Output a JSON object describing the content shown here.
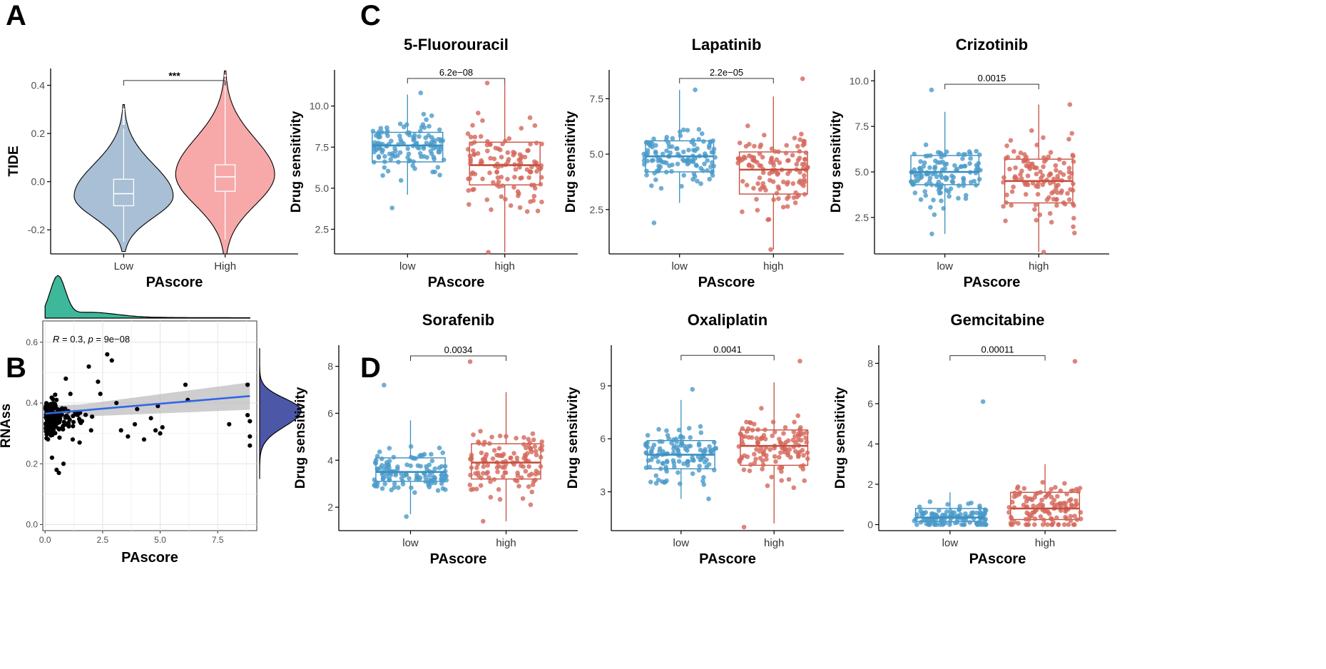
{
  "panel_labels": {
    "a": "A",
    "b": "B",
    "c": "C",
    "d": "D"
  },
  "colors": {
    "low_box": "#3B8FC0",
    "low_point": "#4A9AC9",
    "high_box": "#C5503F",
    "high_point": "#D4675A",
    "violin_low": "#A8BFD5",
    "violin_high": "#F7A9A9",
    "density_top": "#3DB89A",
    "density_right": "#4D57A8",
    "regression": "#3366E6",
    "ci_band": "#BDBDBD"
  },
  "chart_data": [
    {
      "id": "A",
      "type": "violin",
      "title": "",
      "xlabel": "PAscore",
      "ylabel": "TIDE",
      "categories": [
        "Low",
        "High"
      ],
      "ylim": [
        -0.3,
        0.47
      ],
      "yticks": [
        -0.2,
        0.0,
        0.2,
        0.4
      ],
      "ytick_labels": [
        "-0.2",
        "0.0",
        "0.2",
        "0.4"
      ],
      "significance": "***",
      "groups": [
        {
          "name": "Low",
          "min": -0.29,
          "q1": -0.1,
          "median": -0.05,
          "q3": 0.01,
          "max": 0.32,
          "whisker_low": -0.25,
          "whisker_high": 0.22,
          "mode": -0.06,
          "outliers": [
            0.24,
            0.25,
            0.26,
            0.27,
            0.28,
            0.29,
            0.3
          ]
        },
        {
          "name": "High",
          "min": -0.3,
          "q1": -0.04,
          "median": 0.02,
          "q3": 0.07,
          "max": 0.46,
          "whisker_low": -0.24,
          "whisker_high": 0.4,
          "mode": 0.03,
          "outliers": [
            0.42,
            0.44
          ]
        }
      ]
    },
    {
      "id": "B",
      "type": "scatter",
      "title": "",
      "xlabel": "PAscore",
      "ylabel": "RNAss",
      "annotation_r": "R",
      "annotation_r_value": " = 0.3, ",
      "annotation_p": "p",
      "annotation_p_value": " = 9e−08",
      "xlim": [
        -0.1,
        9.2
      ],
      "ylim": [
        -0.02,
        0.67
      ],
      "xticks": [
        0.0,
        2.5,
        5.0,
        7.5
      ],
      "xtick_labels": [
        "0.0",
        "2.5",
        "5.0",
        "7.5"
      ],
      "yticks": [
        0.0,
        0.2,
        0.4,
        0.6
      ],
      "ytick_labels": [
        "0.0",
        "0.2",
        "0.4",
        "0.6"
      ],
      "regression": {
        "intercept": 0.365,
        "slope": 0.0065,
        "ci_start": 0.02,
        "ci_end": 0.045
      },
      "points_outline": [
        [
          0.3,
          0.22
        ],
        [
          0.5,
          0.18
        ],
        [
          0.6,
          0.17
        ],
        [
          0.8,
          0.2
        ],
        [
          1.2,
          0.28
        ],
        [
          1.5,
          0.27
        ],
        [
          1.9,
          0.52
        ],
        [
          2.3,
          0.47
        ],
        [
          2.7,
          0.56
        ],
        [
          2.9,
          0.54
        ],
        [
          3.3,
          0.31
        ],
        [
          3.6,
          0.29
        ],
        [
          4.3,
          0.28
        ],
        [
          4.6,
          0.35
        ],
        [
          5.0,
          0.3
        ],
        [
          6.1,
          0.46
        ],
        [
          6.2,
          0.41
        ],
        [
          8.0,
          0.33
        ],
        [
          8.8,
          0.46
        ],
        [
          8.8,
          0.36
        ],
        [
          8.9,
          0.29
        ],
        [
          8.9,
          0.26
        ],
        [
          8.9,
          0.34
        ],
        [
          2.0,
          0.31
        ],
        [
          2.4,
          0.43
        ],
        [
          1.1,
          0.43
        ],
        [
          1.3,
          0.37
        ],
        [
          0.9,
          0.48
        ],
        [
          3.1,
          0.4
        ],
        [
          4.0,
          0.38
        ],
        [
          4.9,
          0.39
        ],
        [
          4.8,
          0.31
        ],
        [
          3.9,
          0.33
        ],
        [
          5.1,
          0.32
        ]
      ]
    },
    {
      "id": "C1",
      "type": "boxplot",
      "title": "5-Fluorouracil",
      "xlabel": "PAscore",
      "ylabel": "Drug sensitivity",
      "categories": [
        "low",
        "high"
      ],
      "ylim": [
        1.0,
        12.2
      ],
      "yticks": [
        2.5,
        5.0,
        7.5,
        10.0
      ],
      "ytick_labels": [
        "2.5",
        "5.0",
        "7.5",
        "10.0"
      ],
      "pvalue": "6.2e−08",
      "groups": [
        {
          "name": "low",
          "whisker_low": 4.6,
          "q1": 6.6,
          "median": 7.6,
          "q3": 8.4,
          "whisker_high": 10.7,
          "pmin": 3.8,
          "pmax": 10.8
        },
        {
          "name": "high",
          "whisker_low": 1.1,
          "q1": 5.2,
          "median": 6.4,
          "q3": 7.8,
          "whisker_high": 11.4,
          "pmin": 1.1,
          "pmax": 11.4
        }
      ]
    },
    {
      "id": "C2",
      "type": "boxplot",
      "title": "Lapatinib",
      "xlabel": "PAscore",
      "ylabel": "Drug sensitivity",
      "categories": [
        "low",
        "high"
      ],
      "ylim": [
        0.5,
        8.8
      ],
      "yticks": [
        2.5,
        5.0,
        7.5
      ],
      "ytick_labels": [
        "2.5",
        "5.0",
        "7.5"
      ],
      "pvalue": "2.2e−05",
      "groups": [
        {
          "name": "low",
          "whisker_low": 2.8,
          "q1": 4.2,
          "median": 4.9,
          "q3": 5.6,
          "whisker_high": 7.9,
          "pmin": 1.9,
          "pmax": 7.9
        },
        {
          "name": "high",
          "whisker_low": 0.7,
          "q1": 3.2,
          "median": 4.3,
          "q3": 5.1,
          "whisker_high": 7.6,
          "pmin": 0.7,
          "pmax": 8.4
        }
      ]
    },
    {
      "id": "C3",
      "type": "boxplot",
      "title": "Crizotinib",
      "xlabel": "PAscore",
      "ylabel": "Drug sensitivity",
      "categories": [
        "low",
        "high"
      ],
      "ylim": [
        0.5,
        10.6
      ],
      "yticks": [
        2.5,
        5.0,
        7.5,
        10.0
      ],
      "ytick_labels": [
        "2.5",
        "5.0",
        "7.5",
        "10.0"
      ],
      "pvalue": "0.0015",
      "groups": [
        {
          "name": "low",
          "whisker_low": 1.6,
          "q1": 4.3,
          "median": 5.0,
          "q3": 5.9,
          "whisker_high": 8.3,
          "pmin": 1.6,
          "pmax": 9.5
        },
        {
          "name": "high",
          "whisker_low": 0.6,
          "q1": 3.3,
          "median": 4.5,
          "q3": 5.7,
          "whisker_high": 8.7,
          "pmin": 0.6,
          "pmax": 8.7
        }
      ]
    },
    {
      "id": "D1",
      "type": "boxplot",
      "title": "Sorafenib",
      "xlabel": "PAscore",
      "ylabel": "Drug sensitivity",
      "categories": [
        "low",
        "high"
      ],
      "ylim": [
        1.0,
        8.9
      ],
      "yticks": [
        2,
        4,
        6,
        8
      ],
      "ytick_labels": [
        "2",
        "4",
        "6",
        "8"
      ],
      "pvalue": "0.0034",
      "groups": [
        {
          "name": "low",
          "whisker_low": 1.7,
          "q1": 3.1,
          "median": 3.5,
          "q3": 4.1,
          "whisker_high": 5.7,
          "pmin": 1.6,
          "pmax": 7.2
        },
        {
          "name": "high",
          "whisker_low": 1.4,
          "q1": 3.2,
          "median": 3.9,
          "q3": 4.7,
          "whisker_high": 6.9,
          "pmin": 1.4,
          "pmax": 8.2
        }
      ]
    },
    {
      "id": "D2",
      "type": "boxplot",
      "title": "Oxaliplatin",
      "xlabel": "PAscore",
      "ylabel": "Drug sensitivity",
      "categories": [
        "low",
        "high"
      ],
      "ylim": [
        0.8,
        11.3
      ],
      "yticks": [
        3,
        6,
        9
      ],
      "ytick_labels": [
        "3",
        "6",
        "9"
      ],
      "pvalue": "0.0041",
      "groups": [
        {
          "name": "low",
          "whisker_low": 2.6,
          "q1": 4.3,
          "median": 5.1,
          "q3": 5.9,
          "whisker_high": 8.2,
          "pmin": 2.6,
          "pmax": 8.8
        },
        {
          "name": "high",
          "whisker_low": 1.2,
          "q1": 4.5,
          "median": 5.6,
          "q3": 6.5,
          "whisker_high": 9.2,
          "pmin": 1.0,
          "pmax": 10.4
        }
      ]
    },
    {
      "id": "D3",
      "type": "boxplot",
      "title": "Gemcitabine",
      "xlabel": "PAscore",
      "ylabel": "Drug sensitivity",
      "categories": [
        "low",
        "high"
      ],
      "ylim": [
        -0.3,
        8.9
      ],
      "yticks": [
        0,
        2,
        4,
        6,
        8
      ],
      "ytick_labels": [
        "0",
        "2",
        "4",
        "6",
        "8"
      ],
      "pvalue": "0.00011",
      "groups": [
        {
          "name": "low",
          "whisker_low": 0.0,
          "q1": 0.15,
          "median": 0.35,
          "q3": 0.8,
          "whisker_high": 1.6,
          "pmin": 0.0,
          "pmax": 6.1
        },
        {
          "name": "high",
          "whisker_low": 0.0,
          "q1": 0.25,
          "median": 0.8,
          "q3": 1.6,
          "whisker_high": 3.0,
          "pmin": 0.0,
          "pmax": 8.1
        }
      ]
    }
  ]
}
